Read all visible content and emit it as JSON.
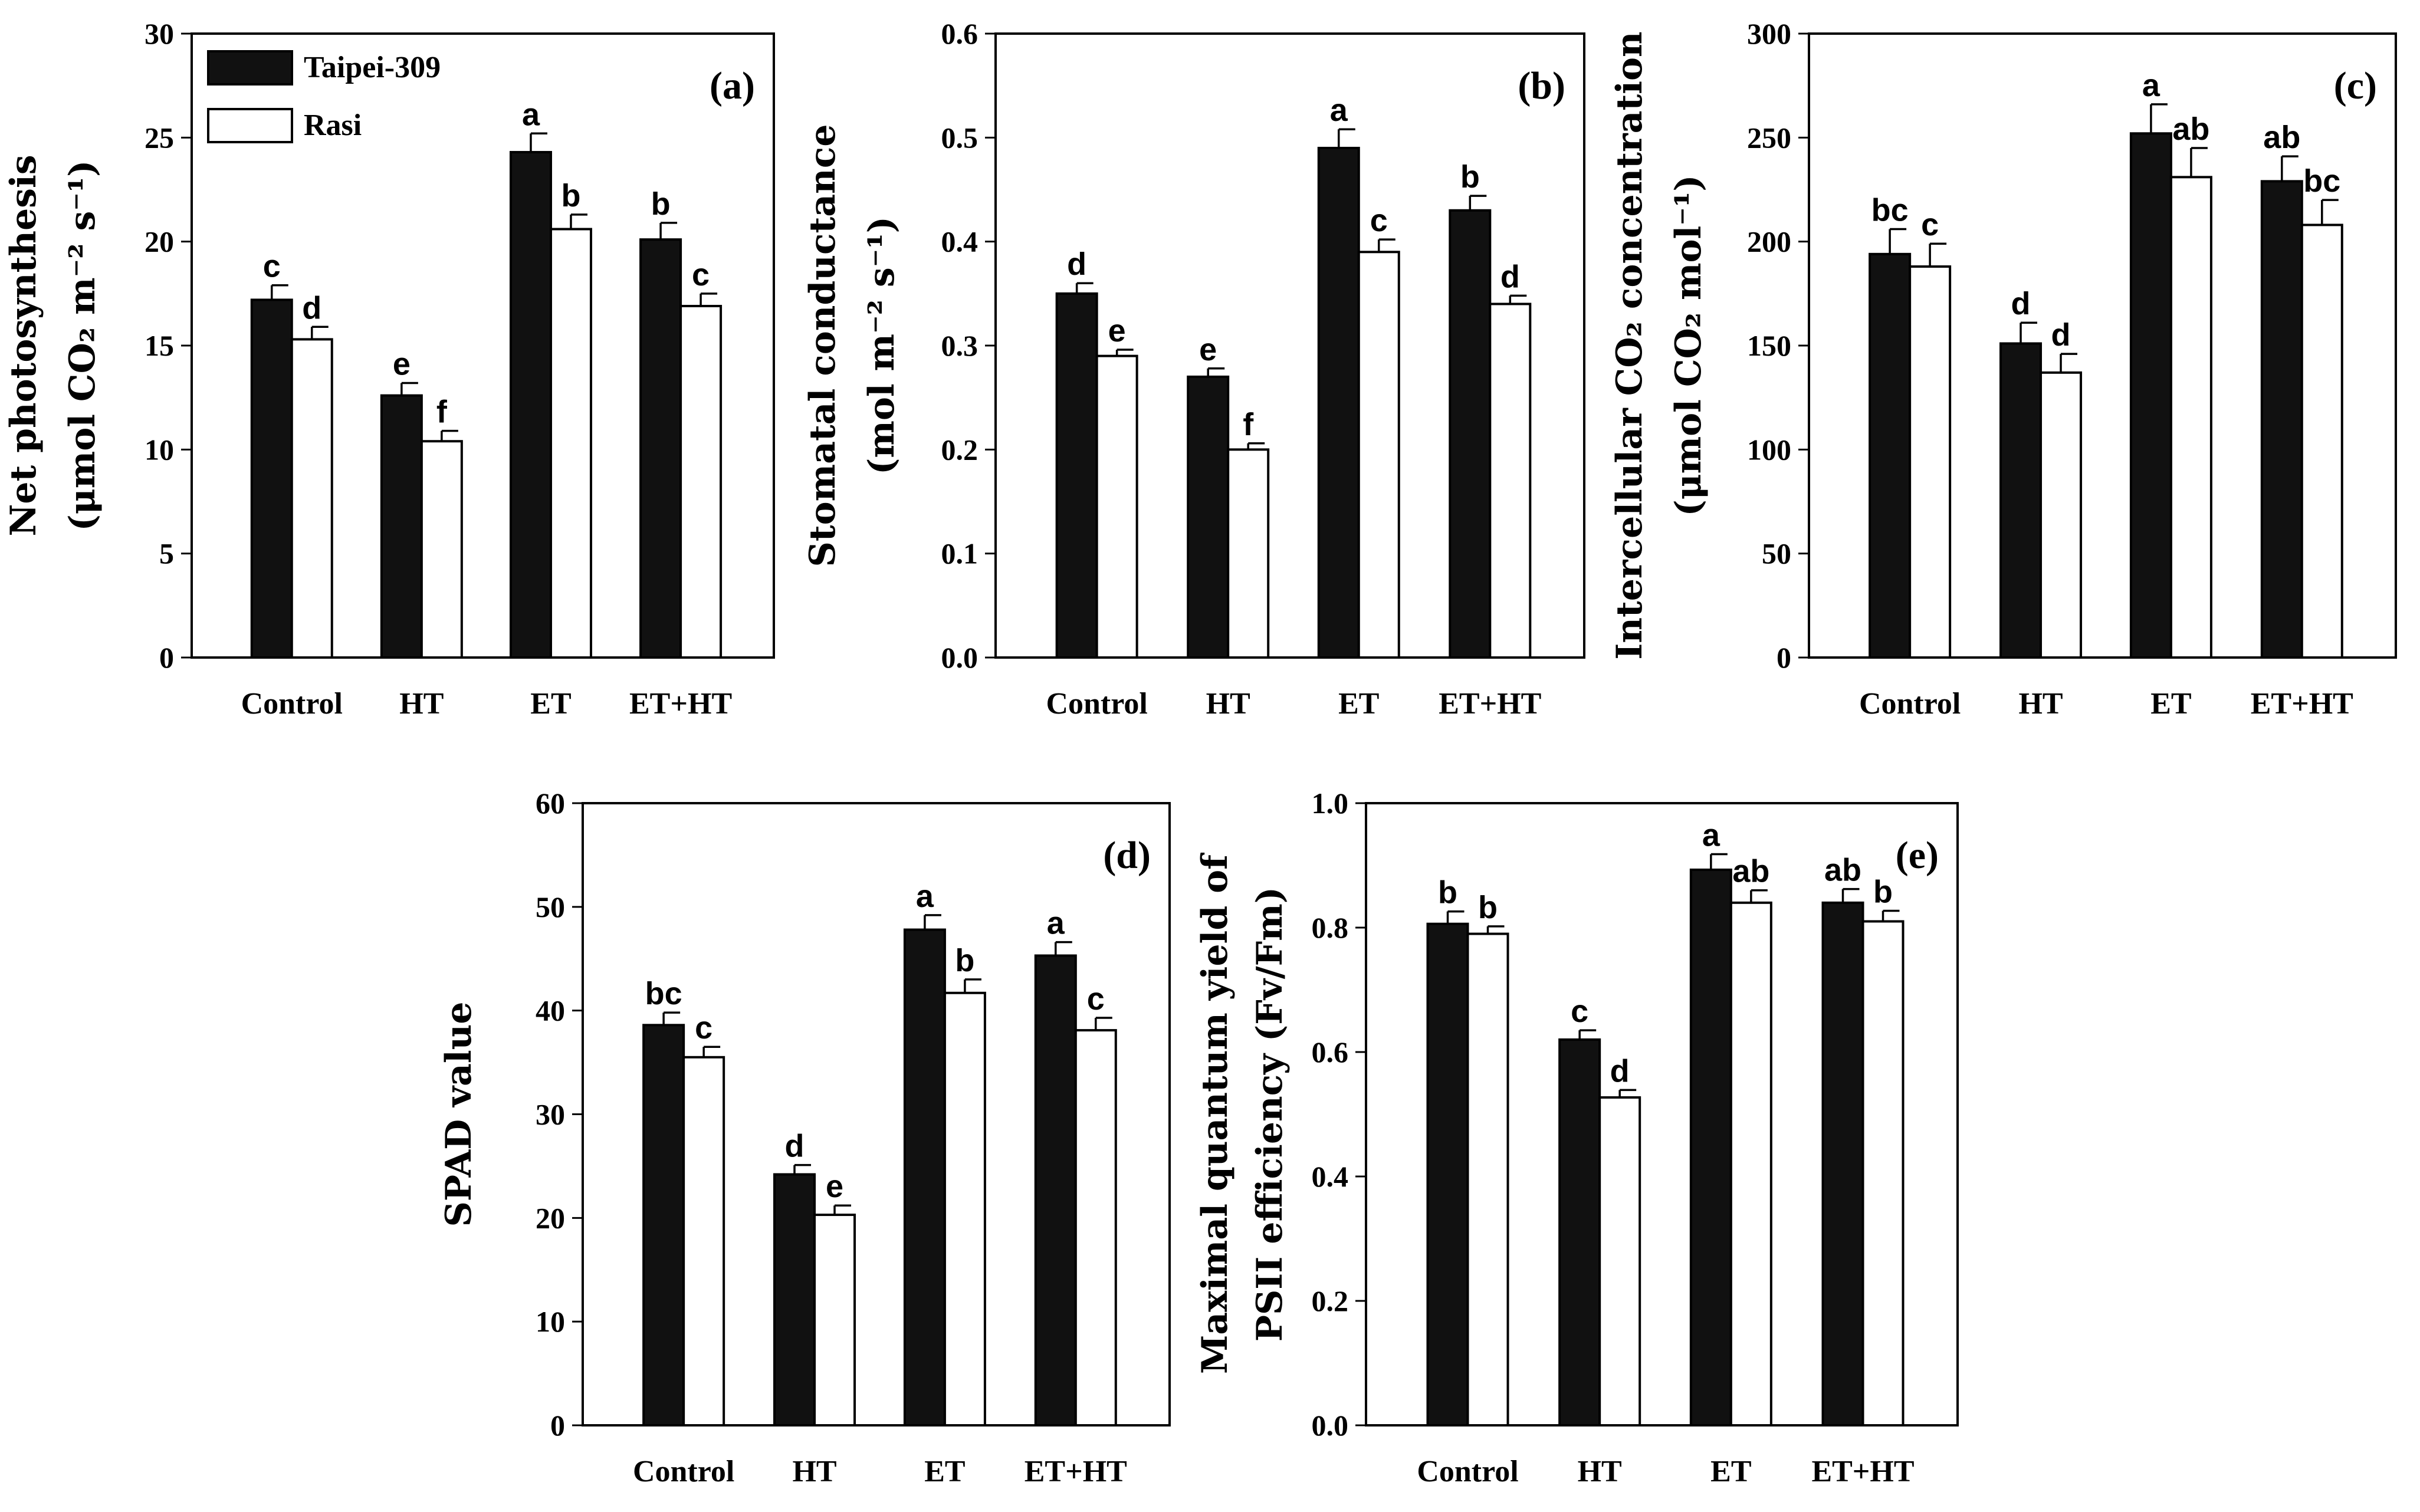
{
  "legend": [
    {
      "name": "Taipei-309",
      "color": "#111111"
    },
    {
      "name": "Rasi",
      "color": "#ffffff"
    }
  ],
  "chart_data": [
    {
      "type": "bar",
      "panel_label": "(a)",
      "categories": [
        "Control",
        "HT",
        "ET",
        "ET+HT"
      ],
      "ylabel_lines": [
        "Net photosynthesis",
        "(μmol CO₂ m⁻² s⁻¹)"
      ],
      "ylim": [
        0,
        30
      ],
      "yticks": [
        "0",
        "5",
        "10",
        "15",
        "20",
        "25",
        "30"
      ],
      "series": [
        {
          "name": "Taipei-309",
          "values": [
            17.2,
            12.6,
            24.3,
            20.1
          ],
          "errors": [
            0.7,
            0.6,
            0.9,
            0.8
          ],
          "letters": [
            "c",
            "e",
            "a",
            "b"
          ]
        },
        {
          "name": "Rasi",
          "values": [
            15.3,
            10.4,
            20.6,
            16.9
          ],
          "errors": [
            0.6,
            0.5,
            0.7,
            0.6
          ],
          "letters": [
            "d",
            "f",
            "b",
            "c"
          ]
        }
      ],
      "legend_position": "top-left"
    },
    {
      "type": "bar",
      "panel_label": "(b)",
      "categories": [
        "Control",
        "HT",
        "ET",
        "ET+HT"
      ],
      "ylabel_lines": [
        "Stomatal conductance",
        "(mol m⁻² s⁻¹)"
      ],
      "ylim": [
        0,
        0.6
      ],
      "yticks": [
        "0.0",
        "0.1",
        "0.2",
        "0.3",
        "0.4",
        "0.5",
        "0.6"
      ],
      "series": [
        {
          "name": "Taipei-309",
          "values": [
            0.35,
            0.27,
            0.49,
            0.43
          ],
          "errors": [
            0.01,
            0.008,
            0.018,
            0.014
          ],
          "letters": [
            "d",
            "e",
            "a",
            "b"
          ]
        },
        {
          "name": "Rasi",
          "values": [
            0.29,
            0.2,
            0.39,
            0.34
          ],
          "errors": [
            0.006,
            0.006,
            0.012,
            0.008
          ],
          "letters": [
            "e",
            "f",
            "c",
            "d"
          ]
        }
      ]
    },
    {
      "type": "bar",
      "panel_label": "(c)",
      "categories": [
        "Control",
        "HT",
        "ET",
        "ET+HT"
      ],
      "ylabel_lines": [
        "Intercellular CO₂ concentration",
        "(μmol CO₂ mol⁻¹)"
      ],
      "ylim": [
        0,
        300
      ],
      "yticks": [
        "0",
        "50",
        "100",
        "150",
        "200",
        "250",
        "300"
      ],
      "series": [
        {
          "name": "Taipei-309",
          "values": [
            194,
            151,
            252,
            229
          ],
          "errors": [
            12,
            10,
            14,
            12
          ],
          "letters": [
            "bc",
            "d",
            "a",
            "ab"
          ]
        },
        {
          "name": "Rasi",
          "values": [
            188,
            137,
            231,
            208
          ],
          "errors": [
            11,
            9,
            14,
            12
          ],
          "letters": [
            "c",
            "d",
            "ab",
            "bc"
          ]
        }
      ]
    },
    {
      "type": "bar",
      "panel_label": "(d)",
      "categories": [
        "Control",
        "HT",
        "ET",
        "ET+HT"
      ],
      "ylabel_lines": [
        "SPAD value"
      ],
      "ylim": [
        0,
        60
      ],
      "yticks": [
        "0",
        "10",
        "20",
        "30",
        "40",
        "50",
        "60"
      ],
      "series": [
        {
          "name": "Taipei-309",
          "values": [
            38.6,
            24.2,
            47.8,
            45.3
          ],
          "errors": [
            1.2,
            0.9,
            1.4,
            1.3
          ],
          "letters": [
            "bc",
            "d",
            "a",
            "a"
          ]
        },
        {
          "name": "Rasi",
          "values": [
            35.5,
            20.3,
            41.7,
            38.1
          ],
          "errors": [
            1.0,
            0.9,
            1.3,
            1.2
          ],
          "letters": [
            "c",
            "e",
            "b",
            "c"
          ]
        }
      ]
    },
    {
      "type": "bar",
      "panel_label": "(e)",
      "categories": [
        "Control",
        "HT",
        "ET",
        "ET+HT"
      ],
      "ylabel_lines": [
        "Maximal quantum yield of",
        "PSII efficiency (Fv/Fm)"
      ],
      "ylim": [
        0,
        1.0
      ],
      "yticks": [
        "0.0",
        "0.2",
        "0.4",
        "0.6",
        "0.8",
        "1.0"
      ],
      "series": [
        {
          "name": "Taipei-309",
          "values": [
            0.806,
            0.62,
            0.893,
            0.84
          ],
          "errors": [
            0.02,
            0.015,
            0.025,
            0.022
          ],
          "letters": [
            "b",
            "c",
            "a",
            "ab"
          ]
        },
        {
          "name": "Rasi",
          "values": [
            0.79,
            0.527,
            0.84,
            0.81
          ],
          "errors": [
            0.012,
            0.012,
            0.02,
            0.017
          ],
          "letters": [
            "b",
            "d",
            "ab",
            "b"
          ]
        }
      ]
    }
  ]
}
